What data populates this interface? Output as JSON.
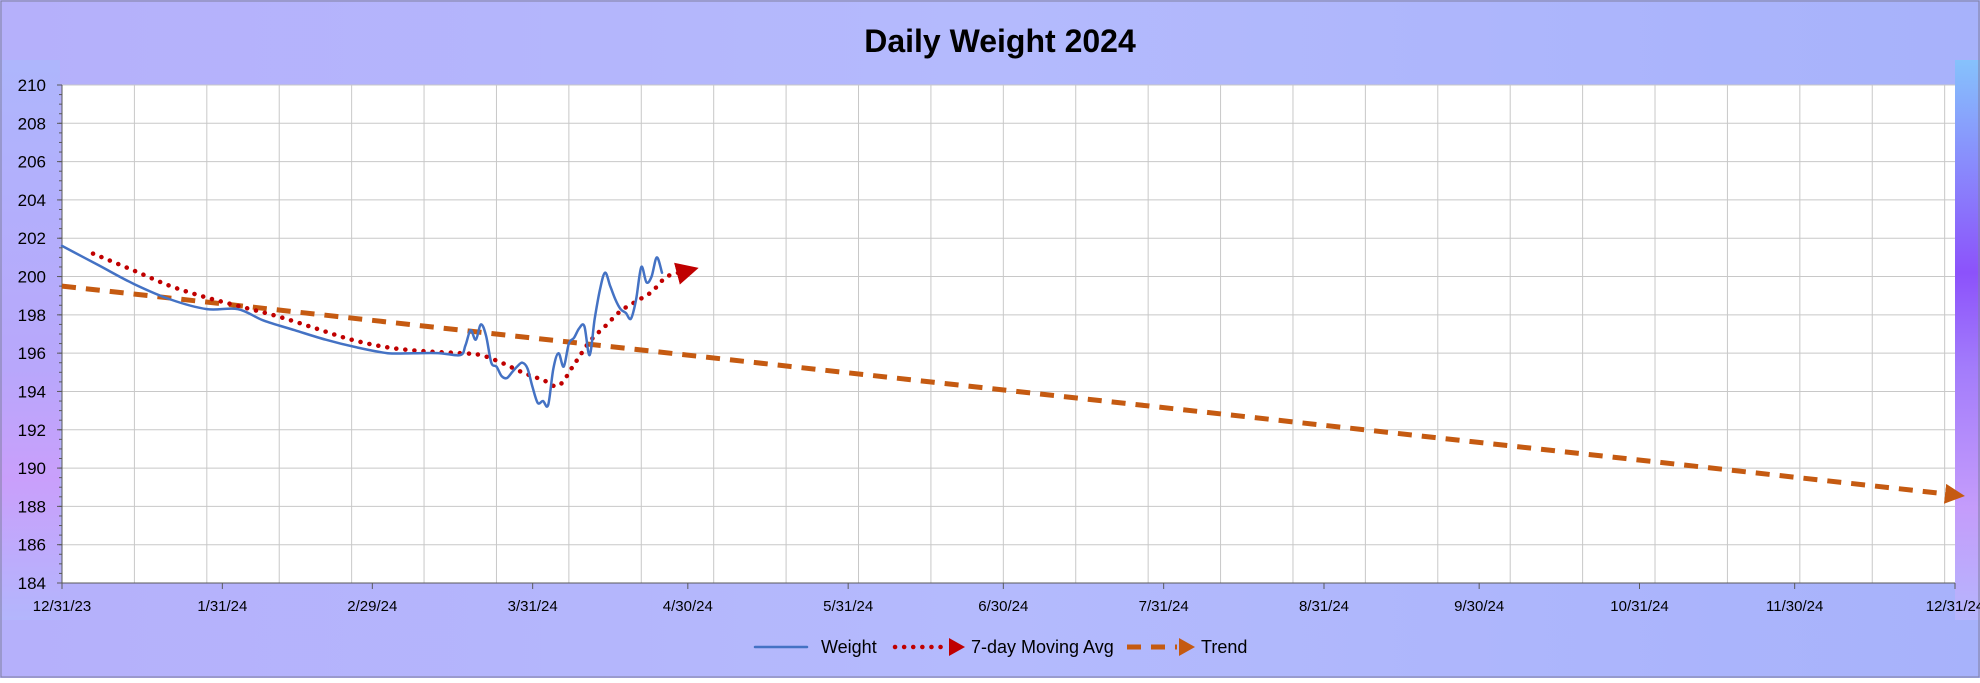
{
  "chart_data": {
    "type": "line",
    "title": "Daily Weight 2024",
    "xlabel": "",
    "ylabel": "",
    "x_axis": {
      "start": "2023-12-31",
      "end": "2024-12-31",
      "tick_labels": [
        "12/31/23",
        "1/31/24",
        "2/29/24",
        "3/31/24",
        "4/30/24",
        "5/31/24",
        "6/30/24",
        "7/31/24",
        "8/31/24",
        "9/30/24",
        "10/31/24",
        "11/30/24",
        "12/31/24"
      ]
    },
    "y_axis": {
      "min": 184,
      "max": 210,
      "step": 2,
      "tick_labels": [
        "184",
        "186",
        "188",
        "190",
        "192",
        "194",
        "196",
        "198",
        "200",
        "202",
        "204",
        "206",
        "208",
        "210"
      ]
    },
    "grid": true,
    "legend_position": "bottom",
    "series": [
      {
        "name": "Weight",
        "color": "#4472C4",
        "style": "solid",
        "points": [
          [
            "2023-12-31",
            201.6
          ],
          [
            "2024-01-07",
            200.6
          ],
          [
            "2024-01-14",
            199.6
          ],
          [
            "2024-01-21",
            198.8
          ],
          [
            "2024-01-28",
            198.3
          ],
          [
            "2024-02-03",
            198.3
          ],
          [
            "2024-02-08",
            197.7
          ],
          [
            "2024-02-14",
            197.2
          ],
          [
            "2024-02-20",
            196.7
          ],
          [
            "2024-02-26",
            196.3
          ],
          [
            "2024-03-03",
            196.0
          ],
          [
            "2024-03-08",
            196.0
          ],
          [
            "2024-03-13",
            196.0
          ],
          [
            "2024-03-17",
            195.9
          ],
          [
            "2024-03-18",
            196.4
          ],
          [
            "2024-03-19",
            197.2
          ],
          [
            "2024-03-20",
            196.7
          ],
          [
            "2024-03-21",
            197.5
          ],
          [
            "2024-03-22",
            196.9
          ],
          [
            "2024-03-23",
            195.5
          ],
          [
            "2024-03-24",
            195.3
          ],
          [
            "2024-03-25",
            194.8
          ],
          [
            "2024-03-26",
            194.7
          ],
          [
            "2024-03-27",
            195.0
          ],
          [
            "2024-03-28",
            195.3
          ],
          [
            "2024-03-29",
            195.5
          ],
          [
            "2024-03-30",
            195.2
          ],
          [
            "2024-03-31",
            194.2
          ],
          [
            "2024-04-01",
            193.4
          ],
          [
            "2024-04-02",
            193.5
          ],
          [
            "2024-04-03",
            193.3
          ],
          [
            "2024-04-04",
            195.2
          ],
          [
            "2024-04-05",
            196.0
          ],
          [
            "2024-04-06",
            195.3
          ],
          [
            "2024-04-07",
            196.5
          ],
          [
            "2024-04-08",
            196.8
          ],
          [
            "2024-04-09",
            197.3
          ],
          [
            "2024-04-10",
            197.4
          ],
          [
            "2024-04-11",
            195.9
          ],
          [
            "2024-04-12",
            197.8
          ],
          [
            "2024-04-13",
            199.3
          ],
          [
            "2024-04-14",
            200.2
          ],
          [
            "2024-04-15",
            199.5
          ],
          [
            "2024-04-16",
            198.8
          ],
          [
            "2024-04-17",
            198.3
          ],
          [
            "2024-04-18",
            198.1
          ],
          [
            "2024-04-19",
            197.8
          ],
          [
            "2024-04-20",
            198.8
          ],
          [
            "2024-04-21",
            200.5
          ],
          [
            "2024-04-22",
            199.7
          ],
          [
            "2024-04-23",
            200.0
          ],
          [
            "2024-04-24",
            201.0
          ],
          [
            "2024-04-25",
            200.2
          ]
        ]
      },
      {
        "name": "7-day Moving Avg",
        "color": "#C00000",
        "style": "dotted",
        "points": [
          [
            "2024-01-06",
            201.2
          ],
          [
            "2024-01-14",
            200.3
          ],
          [
            "2024-01-21",
            199.5
          ],
          [
            "2024-01-28",
            198.9
          ],
          [
            "2024-02-04",
            198.4
          ],
          [
            "2024-02-11",
            197.9
          ],
          [
            "2024-02-18",
            197.3
          ],
          [
            "2024-02-25",
            196.7
          ],
          [
            "2024-03-03",
            196.3
          ],
          [
            "2024-03-10",
            196.1
          ],
          [
            "2024-03-17",
            196.0
          ],
          [
            "2024-03-21",
            195.9
          ],
          [
            "2024-03-25",
            195.5
          ],
          [
            "2024-03-29",
            195.0
          ],
          [
            "2024-04-02",
            194.6
          ],
          [
            "2024-04-05",
            194.3
          ],
          [
            "2024-04-08",
            195.4
          ],
          [
            "2024-04-11",
            196.6
          ],
          [
            "2024-04-14",
            197.4
          ],
          [
            "2024-04-17",
            198.2
          ],
          [
            "2024-04-20",
            198.7
          ],
          [
            "2024-04-23",
            199.2
          ],
          [
            "2024-04-26",
            200.0
          ],
          [
            "2024-04-30",
            200.3
          ]
        ]
      },
      {
        "name": "Trend",
        "color": "#C55A11",
        "style": "dashed",
        "points": [
          [
            "2023-12-31",
            199.5
          ],
          [
            "2024-12-31",
            188.6
          ]
        ]
      }
    ]
  }
}
